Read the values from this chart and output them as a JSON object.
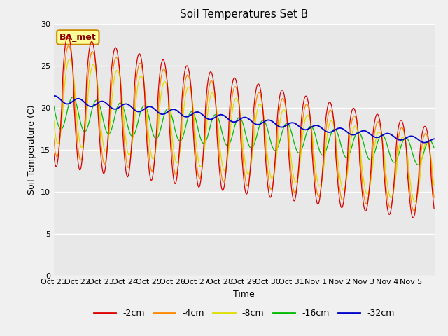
{
  "title": "Soil Temperatures Set B",
  "xlabel": "Time",
  "ylabel": "Soil Temperature (C)",
  "ylim": [
    0,
    30
  ],
  "yticks": [
    0,
    5,
    10,
    15,
    20,
    25,
    30
  ],
  "fig_bg_color": "#f0f0f0",
  "plot_bg_color": "#e8e8e8",
  "annotation_text": "BA_met",
  "annotation_bg": "#ffff99",
  "annotation_border": "#cc8800",
  "annotation_text_color": "#880000",
  "colors": {
    "-2cm": "#dd0000",
    "-4cm": "#ff8800",
    "-8cm": "#dddd00",
    "-16cm": "#00bb00",
    "-32cm": "#0000cc"
  },
  "x_tick_labels": [
    "Oct 21",
    "Oct 22",
    "Oct 23",
    "Oct 24",
    "Oct 25",
    "Oct 26",
    "Oct 27",
    "Oct 28",
    "Oct 29",
    "Oct 30",
    "Oct 31",
    "Nov 1",
    "Nov 2",
    "Nov 3",
    "Nov 4",
    "Nov 5"
  ],
  "num_days": 16,
  "samples_per_day": 48
}
